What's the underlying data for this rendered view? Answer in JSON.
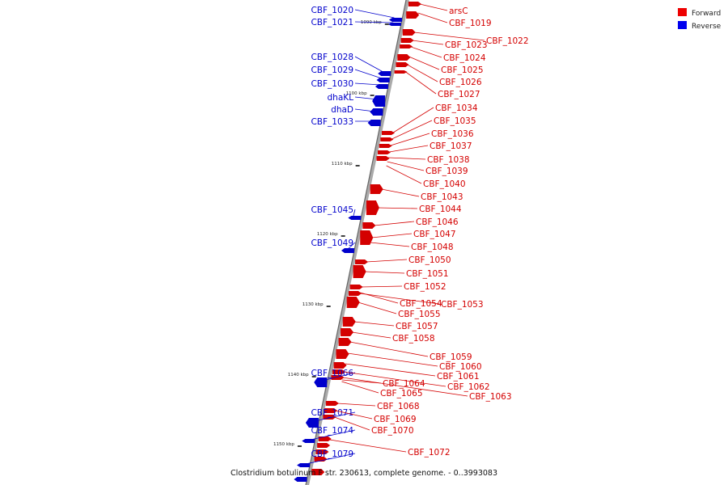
{
  "legend": {
    "forward_label": "Forward",
    "reverse_label": "Reverse",
    "forward_color": "#ee0000",
    "reverse_color": "#0000ee"
  },
  "caption": "Clostridium botulinum F str. 230613, complete genome. - 0..3993083",
  "ticks": [
    "1090 kbp",
    "1100 kbp",
    "1110 kbp",
    "1120 kbp",
    "1130 kbp",
    "1140 kbp",
    "1150 kbp"
  ],
  "reverse_labels": [
    "CBF_1020",
    "CBF_1021",
    "CBF_1028",
    "CBF_1029",
    "CBF_1030",
    "dhaKL",
    "dhaD",
    "CBF_1033",
    "CBF_1045",
    "CBF_1049",
    "CBF_1066",
    "CBF_1071",
    "CBF_1074",
    "CBF_1079"
  ],
  "forward_labels": [
    "arsC",
    "CBF_1019",
    "CBF_1022",
    "CBF_1023",
    "CBF_1024",
    "CBF_1025",
    "CBF_1026",
    "CBF_1027",
    "CBF_1034",
    "CBF_1035",
    "CBF_1036",
    "CBF_1037",
    "CBF_1038",
    "CBF_1039",
    "CBF_1040",
    "CBF_1043",
    "CBF_1044",
    "CBF_1046",
    "CBF_1047",
    "CBF_1048",
    "CBF_1050",
    "CBF_1051",
    "CBF_1052",
    "CBF_1054",
    "CBF_1053",
    "CBF_1055",
    "CBF_1057",
    "CBF_1058",
    "CBF_1059",
    "CBF_1060",
    "CBF_1061",
    "CBF_1062",
    "CBF_1063",
    "CBF_1064",
    "CBF_1065",
    "CBF_1068",
    "CBF_1069",
    "CBF_1070",
    "CBF_1072"
  ]
}
